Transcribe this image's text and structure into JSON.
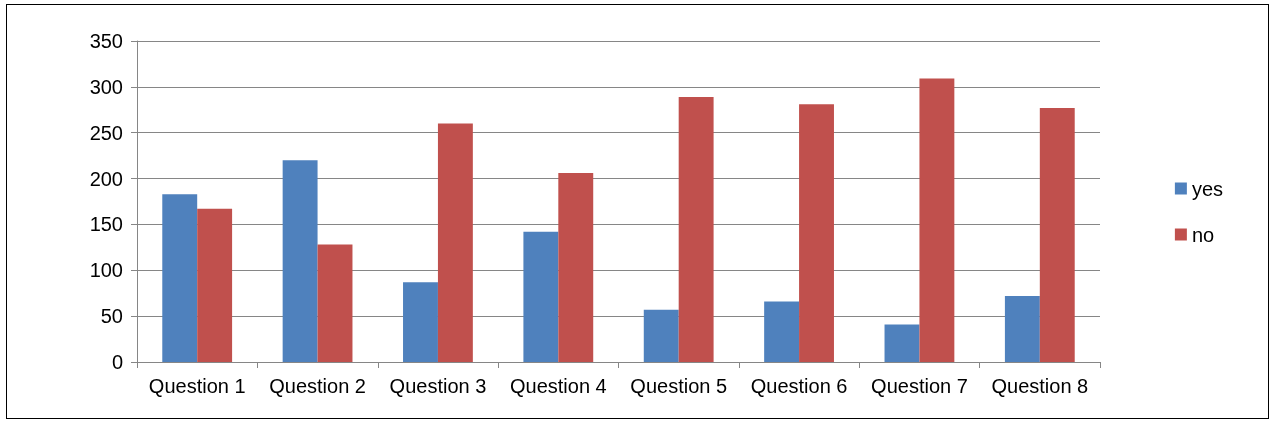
{
  "chart_data": {
    "type": "bar",
    "categories": [
      "Question 1",
      "Question 2",
      "Question 3",
      "Question 4",
      "Question 5",
      "Question 6",
      "Question 7",
      "Question 8"
    ],
    "series": [
      {
        "name": "yes",
        "color": "#4f81bd",
        "values": [
          183,
          220,
          87,
          142,
          57,
          66,
          41,
          72
        ]
      },
      {
        "name": "no",
        "color": "#c0504d",
        "values": [
          167,
          128,
          260,
          206,
          289,
          281,
          309,
          277
        ]
      }
    ],
    "ylim": [
      0,
      350
    ],
    "yticks": [
      0,
      50,
      100,
      150,
      200,
      250,
      300,
      350
    ],
    "grid": "y",
    "legend": "right"
  }
}
